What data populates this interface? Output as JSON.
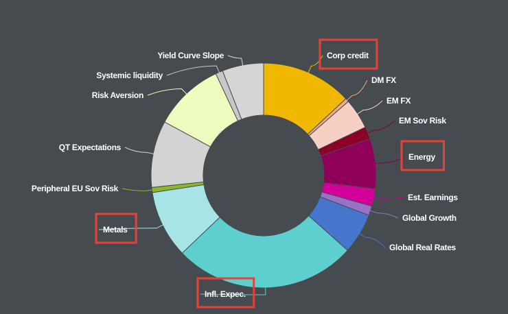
{
  "chart_data": {
    "type": "pie",
    "variant": "donut",
    "title": "",
    "slices": [
      {
        "label": "Corp credit",
        "value": 12.5,
        "color": "#f0b800",
        "highlighted": true
      },
      {
        "label": "DM FX",
        "value": 0.5,
        "color": "#f5a882",
        "highlighted": false
      },
      {
        "label": "EM FX",
        "value": 4.2,
        "color": "#f7d0c4",
        "highlighted": false
      },
      {
        "label": "EM Sov Risk",
        "value": 1.7,
        "color": "#8c0028",
        "highlighted": false
      },
      {
        "label": "Energy",
        "value": 6.9,
        "color": "#8e005a",
        "highlighted": true
      },
      {
        "label": "Est. Earnings",
        "value": 2.4,
        "color": "#d4009a",
        "highlighted": false
      },
      {
        "label": "Global Growth",
        "value": 1.3,
        "color": "#9b70c8",
        "highlighted": false
      },
      {
        "label": "Global Real Rates",
        "value": 5.6,
        "color": "#4676cc",
        "highlighted": false
      },
      {
        "label": "Infl. Expec.",
        "value": 25.2,
        "color": "#5ecfcf",
        "highlighted": true
      },
      {
        "label": "Metals",
        "value": 9.3,
        "color": "#a6e4e7",
        "highlighted": true
      },
      {
        "label": "Peripheral EU Sov Risk",
        "value": 0.7,
        "color": "#8cb828",
        "highlighted": false
      },
      {
        "label": "QT Expectations",
        "value": 9.2,
        "color": "#d3d3d3",
        "highlighted": false
      },
      {
        "label": "Risk Aversion",
        "value": 9.7,
        "color": "#eefcc0",
        "highlighted": false
      },
      {
        "label": "Systemic liquidity",
        "value": 1.0,
        "color": "#c8c8c8",
        "highlighted": false
      },
      {
        "label": "Yield Curve Slope",
        "value": 5.7,
        "color": "#d5d5d5",
        "highlighted": false
      }
    ],
    "legend": "none",
    "data_labels": "outside with leader lines"
  }
}
